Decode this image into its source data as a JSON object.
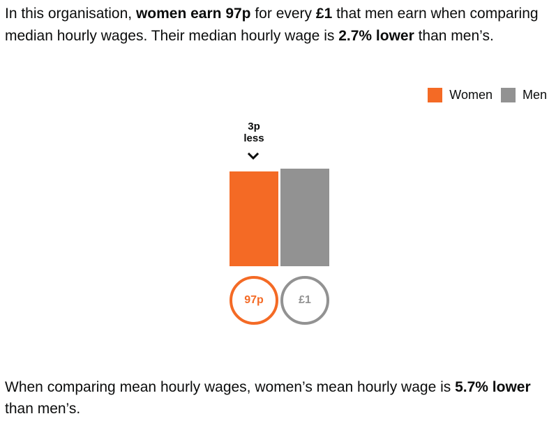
{
  "intro": {
    "t1": "In this organisation, ",
    "b1": "women earn 97p",
    "t2": " for every ",
    "b2": "£1",
    "t3": " that men earn when comparing median hourly wages. Their median hourly wage is ",
    "b3": "2.7% lower",
    "t4": " than men’s."
  },
  "outro": {
    "t1": "When comparing mean hourly wages, women’s mean hourly wage is ",
    "b1": "5.7% lower",
    "t2": " than men’s."
  },
  "colors": {
    "women": "#f46a25",
    "men": "#929292",
    "text": "#0b0c0c"
  },
  "icons": {
    "difference_marker": "chevron-down-icon"
  },
  "chart_data": {
    "type": "bar",
    "categories": [
      "Women",
      "Men"
    ],
    "values": [
      97,
      100
    ],
    "units": "pence per £1",
    "value_labels": [
      "97p",
      "£1"
    ],
    "legend": [
      "Women",
      "Men"
    ],
    "legend_position": "top-right",
    "difference_label_line1": "3p",
    "difference_label_line2": "less",
    "ylim": [
      0,
      100
    ],
    "grid": false
  }
}
